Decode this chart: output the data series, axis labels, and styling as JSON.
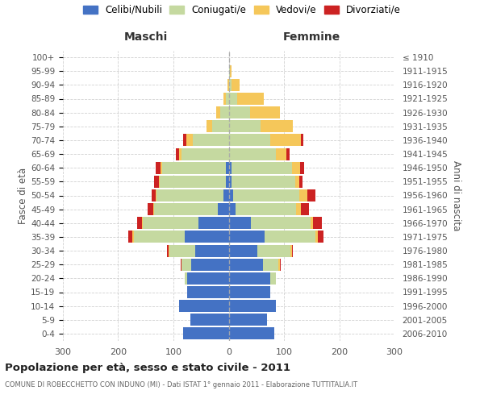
{
  "age_groups": [
    "0-4",
    "5-9",
    "10-14",
    "15-19",
    "20-24",
    "25-29",
    "30-34",
    "35-39",
    "40-44",
    "45-49",
    "50-54",
    "55-59",
    "60-64",
    "65-69",
    "70-74",
    "75-79",
    "80-84",
    "85-89",
    "90-94",
    "95-99",
    "100+"
  ],
  "birth_years": [
    "2006-2010",
    "2001-2005",
    "1996-2000",
    "1991-1995",
    "1986-1990",
    "1981-1985",
    "1976-1980",
    "1971-1975",
    "1966-1970",
    "1961-1965",
    "1956-1960",
    "1951-1955",
    "1946-1950",
    "1941-1945",
    "1936-1940",
    "1931-1935",
    "1926-1930",
    "1921-1925",
    "1916-1920",
    "1911-1915",
    "≤ 1910"
  ],
  "males": {
    "celibe": [
      82,
      70,
      90,
      75,
      75,
      68,
      60,
      80,
      55,
      20,
      10,
      5,
      5,
      0,
      0,
      0,
      0,
      0,
      0,
      0,
      0
    ],
    "coniugato": [
      0,
      0,
      0,
      0,
      5,
      18,
      48,
      92,
      100,
      115,
      120,
      120,
      115,
      85,
      65,
      30,
      15,
      5,
      0,
      0,
      0
    ],
    "vedovo": [
      0,
      0,
      0,
      0,
      0,
      0,
      1,
      2,
      2,
      2,
      2,
      2,
      4,
      5,
      12,
      10,
      8,
      5,
      2,
      0,
      0
    ],
    "divorziato": [
      0,
      0,
      0,
      0,
      0,
      1,
      2,
      8,
      8,
      10,
      8,
      8,
      8,
      5,
      5,
      0,
      0,
      0,
      0,
      0,
      0
    ]
  },
  "females": {
    "nubile": [
      82,
      70,
      85,
      75,
      75,
      62,
      52,
      65,
      40,
      12,
      8,
      5,
      5,
      0,
      0,
      0,
      0,
      0,
      0,
      0,
      0
    ],
    "coniugata": [
      0,
      0,
      0,
      0,
      10,
      28,
      60,
      92,
      108,
      110,
      120,
      115,
      110,
      85,
      75,
      58,
      38,
      15,
      5,
      2,
      0
    ],
    "vedova": [
      0,
      0,
      0,
      0,
      0,
      2,
      2,
      5,
      5,
      8,
      14,
      8,
      14,
      20,
      55,
      58,
      55,
      48,
      15,
      3,
      1
    ],
    "divorziata": [
      0,
      0,
      0,
      0,
      0,
      2,
      2,
      10,
      15,
      15,
      15,
      5,
      8,
      5,
      5,
      0,
      0,
      0,
      0,
      0,
      0
    ]
  },
  "colors": {
    "celibe": "#4472c4",
    "coniugato": "#c5d9a0",
    "vedovo": "#f5c75a",
    "divorziato": "#cc2222"
  },
  "xlim": 300,
  "title": "Popolazione per età, sesso e stato civile - 2011",
  "subtitle": "COMUNE DI ROBECCHETTO CON INDUNO (MI) - Dati ISTAT 1° gennaio 2011 - Elaborazione TUTTITALIA.IT",
  "ylabel_left": "Fasce di età",
  "ylabel_right": "Anni di nascita",
  "xlabel_left": "Maschi",
  "xlabel_right": "Femmine",
  "background_color": "#ffffff",
  "grid_color": "#cccccc"
}
